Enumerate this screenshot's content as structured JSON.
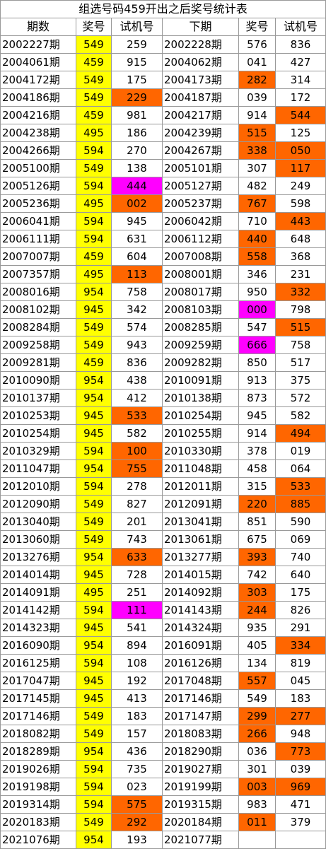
{
  "table": {
    "title": "组选号码459开出之后奖号统计表",
    "header": [
      "期数",
      "奖号",
      "试机号",
      "下期",
      "奖号",
      "试机号"
    ],
    "rows": [
      [
        "2002227期",
        "549",
        "259",
        "2002228期",
        "576",
        "836"
      ],
      [
        "2004061期",
        "459",
        "915",
        "2004062期",
        "041",
        "427"
      ],
      [
        "2004172期",
        "549",
        "175",
        "2004173期",
        "282",
        "314"
      ],
      [
        "2004186期",
        "549",
        "229",
        "2004187期",
        "039",
        "172"
      ],
      [
        "2004216期",
        "459",
        "981",
        "2004217期",
        "914",
        "544"
      ],
      [
        "2004238期",
        "495",
        "186",
        "2004239期",
        "515",
        "125"
      ],
      [
        "2004266期",
        "594",
        "270",
        "2004267期",
        "338",
        "050"
      ],
      [
        "2005100期",
        "549",
        "138",
        "2005101期",
        "307",
        "117"
      ],
      [
        "2005126期",
        "594",
        "444",
        "2005127期",
        "482",
        "249"
      ],
      [
        "2005236期",
        "495",
        "002",
        "2005237期",
        "767",
        "598"
      ],
      [
        "2006041期",
        "594",
        "945",
        "2006042期",
        "710",
        "443"
      ],
      [
        "2006111期",
        "594",
        "631",
        "2006112期",
        "440",
        "648"
      ],
      [
        "2007007期",
        "459",
        "604",
        "2007008期",
        "558",
        "368"
      ],
      [
        "2007357期",
        "495",
        "113",
        "2008001期",
        "346",
        "231"
      ],
      [
        "2008016期",
        "954",
        "758",
        "2008017期",
        "950",
        "332"
      ],
      [
        "2008102期",
        "945",
        "342",
        "2008103期",
        "000",
        "798"
      ],
      [
        "2008284期",
        "549",
        "574",
        "2008285期",
        "547",
        "515"
      ],
      [
        "2009258期",
        "549",
        "943",
        "2009259期",
        "666",
        "758"
      ],
      [
        "2009281期",
        "459",
        "836",
        "2009282期",
        "850",
        "517"
      ],
      [
        "2010090期",
        "954",
        "438",
        "2010091期",
        "913",
        "375"
      ],
      [
        "2010137期",
        "954",
        "412",
        "2010138期",
        "873",
        "572"
      ],
      [
        "2010253期",
        "945",
        "533",
        "2010254期",
        "945",
        "582"
      ],
      [
        "2010254期",
        "945",
        "582",
        "2010255期",
        "914",
        "494"
      ],
      [
        "2010329期",
        "594",
        "100",
        "2010330期",
        "378",
        "019"
      ],
      [
        "2011047期",
        "954",
        "755",
        "2011048期",
        "458",
        "064"
      ],
      [
        "2012010期",
        "594",
        "278",
        "2012011期",
        "315",
        "533"
      ],
      [
        "2012090期",
        "549",
        "827",
        "2012091期",
        "220",
        "885"
      ],
      [
        "2013040期",
        "549",
        "201",
        "2013041期",
        "851",
        "590"
      ],
      [
        "2013060期",
        "549",
        "743",
        "2013061期",
        "675",
        "069"
      ],
      [
        "2013276期",
        "954",
        "633",
        "2013277期",
        "393",
        "740"
      ],
      [
        "2014014期",
        "945",
        "728",
        "2014015期",
        "742",
        "640"
      ],
      [
        "2014091期",
        "495",
        "251",
        "2014092期",
        "303",
        "175"
      ],
      [
        "2014142期",
        "594",
        "111",
        "2014143期",
        "244",
        "826"
      ],
      [
        "2014323期",
        "945",
        "541",
        "2014324期",
        "935",
        "291"
      ],
      [
        "2016090期",
        "954",
        "894",
        "2016091期",
        "405",
        "334"
      ],
      [
        "2016125期",
        "594",
        "108",
        "2016126期",
        "134",
        "819"
      ],
      [
        "2017047期",
        "945",
        "192",
        "2017048期",
        "557",
        "045"
      ],
      [
        "2017145期",
        "945",
        "413",
        "2017146期",
        "549",
        "183"
      ],
      [
        "2017146期",
        "549",
        "183",
        "2017147期",
        "299",
        "277"
      ],
      [
        "2018082期",
        "549",
        "157",
        "2018083期",
        "266",
        "948"
      ],
      [
        "2018289期",
        "954",
        "436",
        "2018290期",
        "036",
        "773"
      ],
      [
        "2019026期",
        "594",
        "735",
        "2019027期",
        "301",
        "039"
      ],
      [
        "2019198期",
        "594",
        "023",
        "2019199期",
        "003",
        "969"
      ],
      [
        "2019314期",
        "594",
        "575",
        "2019315期",
        "983",
        "471"
      ],
      [
        "2020183期",
        "549",
        "292",
        "2020184期",
        "011",
        "379"
      ],
      [
        "2021076期",
        "954",
        "193",
        "2021077期"
      ]
    ]
  }
}
